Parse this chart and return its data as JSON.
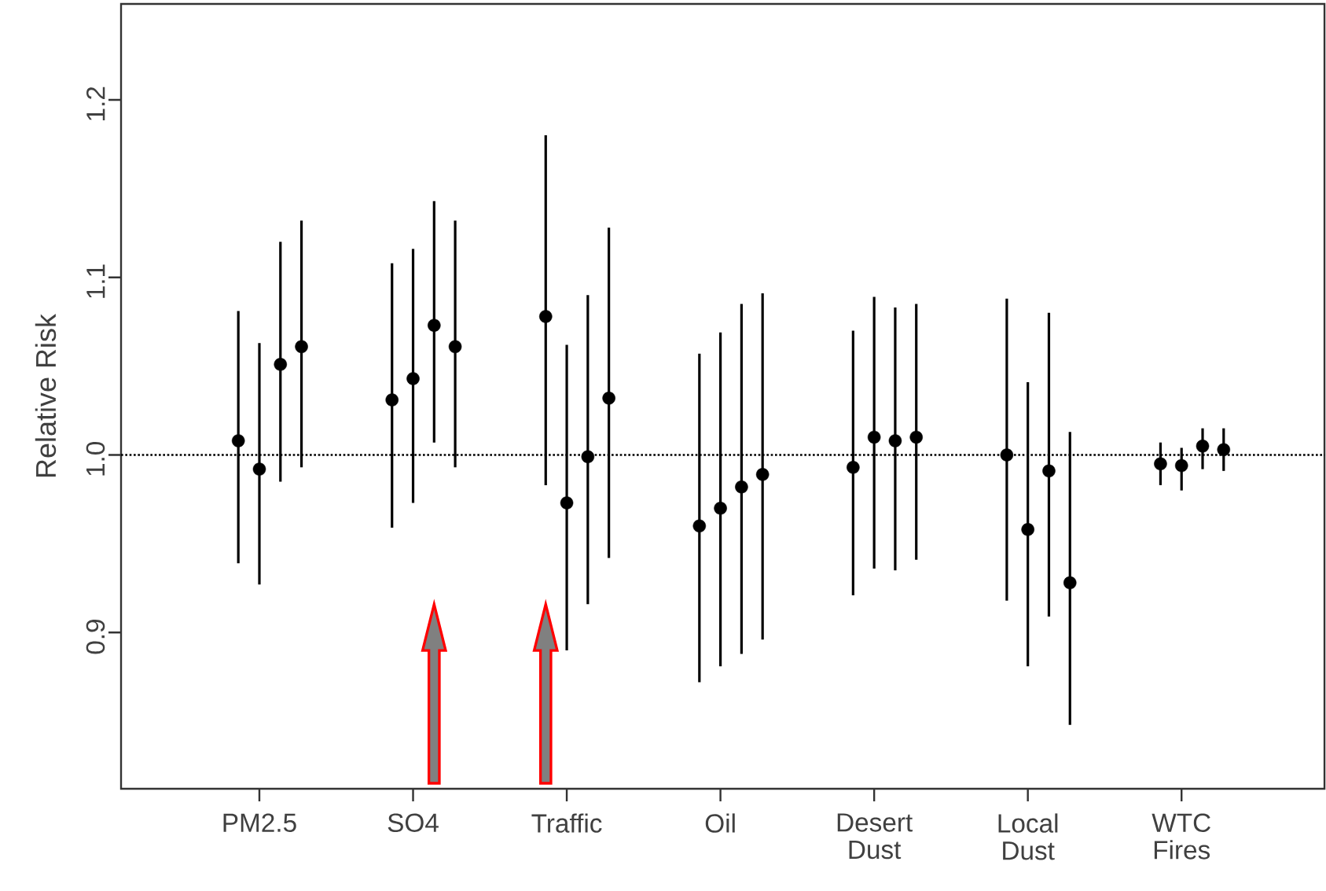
{
  "chart_data": {
    "type": "scatter",
    "ylabel": "Relative Risk",
    "categories": [
      "PM2.5",
      "SO4",
      "Traffic",
      "Oil",
      "Desert Dust",
      "Local Dust",
      "WTC Fires"
    ],
    "series": [
      {
        "color": "#000000",
        "values": [
          1.008,
          1.031,
          1.078,
          0.96,
          0.993,
          1.0,
          0.995
        ],
        "errors": [
          [
            0.939,
            1.081
          ],
          [
            0.959,
            1.108
          ],
          [
            0.983,
            1.18
          ],
          [
            0.872,
            1.057
          ],
          [
            0.921,
            1.07
          ],
          [
            0.918,
            1.088
          ],
          [
            0.983,
            1.007
          ]
        ]
      },
      {
        "color": "#000000",
        "values": [
          0.992,
          1.043,
          0.973,
          0.97,
          1.01,
          0.958,
          0.994
        ],
        "errors": [
          [
            0.927,
            1.063
          ],
          [
            0.973,
            1.116
          ],
          [
            0.89,
            1.062
          ],
          [
            0.881,
            1.069
          ],
          [
            0.936,
            1.089
          ],
          [
            0.881,
            1.041
          ],
          [
            0.98,
            1.004
          ]
        ]
      },
      {
        "color": "#000000",
        "values": [
          1.051,
          1.073,
          0.999,
          0.982,
          1.008,
          0.991,
          1.005
        ],
        "errors": [
          [
            0.985,
            1.12
          ],
          [
            1.007,
            1.143
          ],
          [
            0.916,
            1.09
          ],
          [
            0.888,
            1.085
          ],
          [
            0.935,
            1.083
          ],
          [
            0.909,
            1.08
          ],
          [
            0.992,
            1.015
          ]
        ]
      },
      {
        "color": "#000000",
        "values": [
          1.061,
          1.061,
          1.032,
          0.989,
          1.01,
          0.928,
          1.003
        ],
        "errors": [
          [
            0.993,
            1.132
          ],
          [
            0.993,
            1.132
          ],
          [
            0.942,
            1.128
          ],
          [
            0.896,
            1.091
          ],
          [
            0.941,
            1.085
          ],
          [
            0.848,
            1.013
          ],
          [
            0.991,
            1.015
          ]
        ]
      }
    ],
    "ylim": [
      0.812,
      1.254
    ],
    "yticks": [
      {
        "value": 0.9,
        "label": "0.9"
      },
      {
        "value": 1.0,
        "label": "1.0"
      },
      {
        "value": 1.1,
        "label": "1.1"
      },
      {
        "value": 1.2,
        "label": "1.2"
      }
    ],
    "ref_lines": [
      {
        "axis": "y",
        "value": 1.0,
        "line_style": "dotted"
      }
    ],
    "marker": "circle",
    "grid": false
  }
}
